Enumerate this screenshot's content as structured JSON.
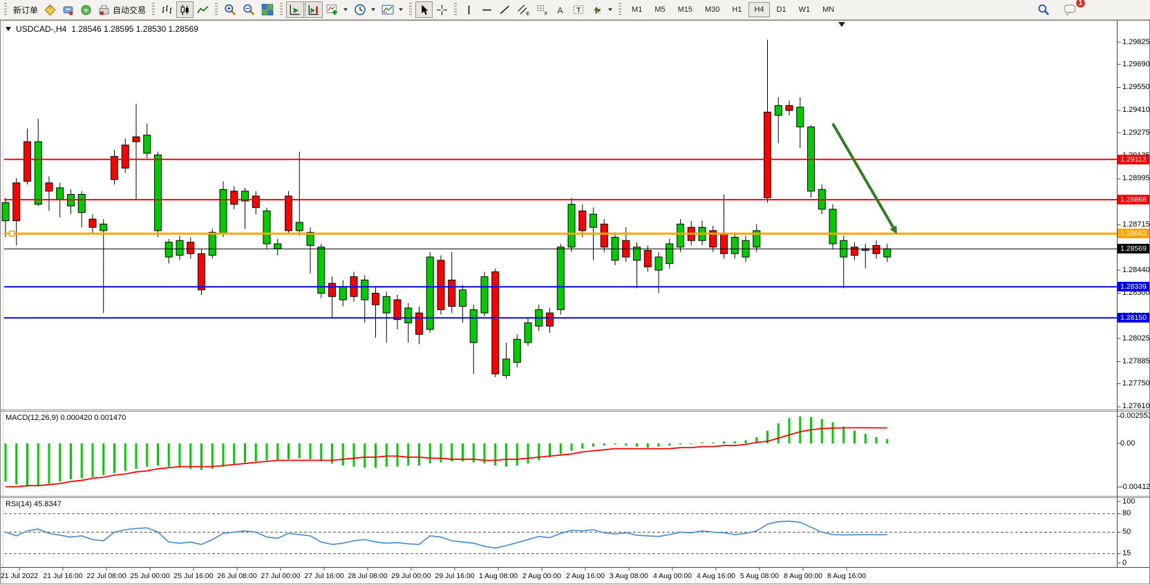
{
  "toolbar": {
    "new_order_label": "新订单",
    "auto_trading_label": "自动交易",
    "timeframes": [
      "M1",
      "M5",
      "M15",
      "M30",
      "H1",
      "H4",
      "D1",
      "W1",
      "MN"
    ],
    "active_timeframe": "H4",
    "notification_count": "1",
    "icon_buttons": [
      "new-order",
      "market-watch",
      "data-window",
      "alerts",
      "auto-trading",
      "bars-chart",
      "candlestick-chart",
      "line-chart",
      "zoom-in",
      "zoom-out",
      "tile-windows",
      "auto-scroll",
      "chart-shift",
      "indicators-list",
      "periods",
      "templates",
      "cursor",
      "crosshair",
      "vertical-line",
      "horizontal-line",
      "trendline",
      "equidistant-channel",
      "fibonacci",
      "text",
      "text-label",
      "arrows",
      "search",
      "chat"
    ],
    "active_icon_buttons": [
      "candlestick-chart",
      "auto-scroll",
      "chart-shift",
      "cursor"
    ]
  },
  "chart_data": [
    {
      "type": "candlestick",
      "title": "USDCAD-,H4",
      "ohlc_display": "1.28546 1.28595 1.28530 1.28569",
      "x_labels": [
        "21 Jul 2022",
        "21 Jul 16:00",
        "22 Jul 08:00",
        "25 Jul 00:00",
        "25 Jul 16:00",
        "26 Jul 08:00",
        "27 Jul 00:00",
        "27 Jul 16:00",
        "28 Jul 08:00",
        "29 Jul 00:00",
        "29 Jul 16:00",
        "1 Aug 08:00",
        "2 Aug 00:00",
        "2 Aug 16:00",
        "3 Aug 08:00",
        "4 Aug 00:00",
        "4 Aug 16:00",
        "5 Aug 08:00",
        "8 Aug 00:00",
        "8 Aug 16:00"
      ],
      "y_ticks": [
        "1.29825",
        "1.29690",
        "1.29550",
        "1.29410",
        "1.29275",
        "1.29135",
        "1.28995",
        "1.28855",
        "1.28715",
        "1.28575",
        "1.28440",
        "1.28300",
        "1.28160",
        "1.28025",
        "1.27885",
        "1.27750",
        "1.27610"
      ],
      "colors": {
        "up_body": "#00CC00",
        "down_body": "#FF0000",
        "outline": "#000000",
        "wick": "#000000"
      },
      "candle_format": [
        "body_top",
        "body_bottom",
        "high",
        "low",
        "color(g=green,r=red)"
      ],
      "candles": [
        [
          1.2885,
          1.2874,
          1.2888,
          1.2864,
          "g"
        ],
        [
          1.2897,
          1.2874,
          1.29,
          1.2859,
          "r"
        ],
        [
          1.2922,
          1.2898,
          1.293,
          1.2896,
          "r"
        ],
        [
          1.2922,
          1.2884,
          1.2936,
          1.2883,
          "g"
        ],
        [
          1.2897,
          1.2892,
          1.2901,
          1.288,
          "r"
        ],
        [
          1.2894,
          1.2887,
          1.2897,
          1.2876,
          "g"
        ],
        [
          1.289,
          1.2883,
          1.2893,
          1.2878,
          "g"
        ],
        [
          1.289,
          1.2879,
          1.2892,
          1.287,
          "g"
        ],
        [
          1.2875,
          1.287,
          1.2878,
          1.2866,
          "r"
        ],
        [
          1.2872,
          1.2868,
          1.2875,
          1.2818,
          "g"
        ],
        [
          1.2913,
          1.2899,
          1.2917,
          1.2896,
          "r"
        ],
        [
          1.292,
          1.2906,
          1.2924,
          1.2903,
          "r"
        ],
        [
          1.2925,
          1.2922,
          1.2945,
          1.2887,
          "r"
        ],
        [
          1.2926,
          1.2915,
          1.2933,
          1.2912,
          "g"
        ],
        [
          1.2914,
          1.2868,
          1.2916,
          1.2864,
          "g"
        ],
        [
          1.2861,
          1.2852,
          1.2863,
          1.2848,
          "g"
        ],
        [
          1.2862,
          1.2853,
          1.2865,
          1.285,
          "g"
        ],
        [
          1.2861,
          1.2854,
          1.2864,
          1.2851,
          "r"
        ],
        [
          1.2854,
          1.2832,
          1.2857,
          1.2829,
          "r"
        ],
        [
          1.2867,
          1.2853,
          1.2869,
          1.2851,
          "g"
        ],
        [
          1.2893,
          1.2866,
          1.2898,
          1.2864,
          "g"
        ],
        [
          1.2892,
          1.2884,
          1.2895,
          1.2881,
          "r"
        ],
        [
          1.2892,
          1.2886,
          1.2894,
          1.2869,
          "g"
        ],
        [
          1.2889,
          1.2882,
          1.2892,
          1.2878,
          "r"
        ],
        [
          1.288,
          1.286,
          1.2882,
          1.2857,
          "g"
        ],
        [
          1.286,
          1.2857,
          1.2863,
          1.2853,
          "g"
        ],
        [
          1.2889,
          1.2868,
          1.2892,
          1.2866,
          "r"
        ],
        [
          1.2873,
          1.2868,
          1.2916,
          1.2865,
          "g"
        ],
        [
          1.2867,
          1.2859,
          1.287,
          1.2842,
          "g"
        ],
        [
          1.2858,
          1.283,
          1.286,
          1.2827,
          "g"
        ],
        [
          1.2836,
          1.2828,
          1.284,
          1.2815,
          "r"
        ],
        [
          1.2834,
          1.2826,
          1.2838,
          1.2822,
          "g"
        ],
        [
          1.284,
          1.2828,
          1.2843,
          1.2825,
          "r"
        ],
        [
          1.2838,
          1.2826,
          1.2841,
          1.2812,
          "g"
        ],
        [
          1.283,
          1.2823,
          1.2834,
          1.2803,
          "r"
        ],
        [
          1.2828,
          1.2818,
          1.2831,
          1.28,
          "g"
        ],
        [
          1.2826,
          1.2814,
          1.2829,
          1.2808,
          "r"
        ],
        [
          1.2821,
          1.2812,
          1.2824,
          1.28,
          "g"
        ],
        [
          1.2818,
          1.2805,
          1.2822,
          1.2799,
          "r"
        ],
        [
          1.2852,
          1.2808,
          1.2855,
          1.2806,
          "g"
        ],
        [
          1.285,
          1.282,
          1.2853,
          1.2817,
          "r"
        ],
        [
          1.2838,
          1.2822,
          1.2855,
          1.2818,
          "r"
        ],
        [
          1.2832,
          1.2822,
          1.2835,
          1.2812,
          "g"
        ],
        [
          1.282,
          1.28,
          1.2823,
          1.2781,
          "g"
        ],
        [
          1.284,
          1.2818,
          1.2843,
          1.2816,
          "g"
        ],
        [
          1.2843,
          1.2781,
          1.2845,
          1.2779,
          "r"
        ],
        [
          1.279,
          1.278,
          1.28,
          1.2778,
          "g"
        ],
        [
          1.2802,
          1.2788,
          1.2805,
          1.2785,
          "g"
        ],
        [
          1.2812,
          1.28,
          1.2815,
          1.2798,
          "g"
        ],
        [
          1.282,
          1.281,
          1.2823,
          1.2807,
          "g"
        ],
        [
          1.2818,
          1.281,
          1.2821,
          1.2806,
          "r"
        ],
        [
          1.2858,
          1.282,
          1.286,
          1.2817,
          "g"
        ],
        [
          1.2884,
          1.2858,
          1.2888,
          1.2855,
          "g"
        ],
        [
          1.288,
          1.2868,
          1.2884,
          1.2864,
          "r"
        ],
        [
          1.2878,
          1.287,
          1.2882,
          1.285,
          "g"
        ],
        [
          1.2872,
          1.2858,
          1.2875,
          1.2855,
          "r"
        ],
        [
          1.2864,
          1.285,
          1.2867,
          1.2847,
          "g"
        ],
        [
          1.2862,
          1.2852,
          1.287,
          1.2849,
          "r"
        ],
        [
          1.2858,
          1.285,
          1.2861,
          1.2833,
          "g"
        ],
        [
          1.2856,
          1.2846,
          1.2859,
          1.2843,
          "r"
        ],
        [
          1.2852,
          1.2844,
          1.2855,
          1.283,
          "g"
        ],
        [
          1.286,
          1.2848,
          1.2863,
          1.2845,
          "g"
        ],
        [
          1.2872,
          1.2858,
          1.2875,
          1.2855,
          "g"
        ],
        [
          1.287,
          1.2862,
          1.2874,
          1.2859,
          "r"
        ],
        [
          1.287,
          1.2862,
          1.2874,
          1.2859,
          "g"
        ],
        [
          1.2868,
          1.2858,
          1.2871,
          1.2855,
          "r"
        ],
        [
          1.2866,
          1.2854,
          1.289,
          1.2851,
          "r"
        ],
        [
          1.2864,
          1.2854,
          1.2867,
          1.2851,
          "g"
        ],
        [
          1.2862,
          1.2852,
          1.2865,
          1.2849,
          "g"
        ],
        [
          1.2868,
          1.2858,
          1.2872,
          1.2855,
          "g"
        ],
        [
          1.294,
          1.2888,
          1.2984,
          1.2885,
          "r"
        ],
        [
          1.2944,
          1.2938,
          1.2949,
          1.2921,
          "g"
        ],
        [
          1.2944,
          1.2941,
          1.2947,
          1.2938,
          "r"
        ],
        [
          1.2943,
          1.2931,
          1.2949,
          1.2918,
          "g"
        ],
        [
          1.2931,
          1.2892,
          1.2932,
          1.2888,
          "g"
        ],
        [
          1.2893,
          1.2881,
          1.2896,
          1.2878,
          "g"
        ],
        [
          1.2881,
          1.286,
          1.2884,
          1.2857,
          "g"
        ],
        [
          1.2862,
          1.2852,
          1.2865,
          1.2833,
          "g"
        ],
        [
          1.2858,
          1.2853,
          1.2861,
          1.285,
          "r"
        ],
        [
          1.2857,
          1.2856,
          1.286,
          1.2845,
          "r"
        ],
        [
          1.2859,
          1.2854,
          1.2862,
          1.2851,
          "r"
        ],
        [
          1.2857,
          1.2852,
          1.286,
          1.2849,
          "g"
        ]
      ],
      "hlines": [
        {
          "price": 1.29113,
          "label": "1.29113",
          "color": "#FF0000",
          "width": 2
        },
        {
          "price": 1.28868,
          "label": "1.28868",
          "color": "#FF0000",
          "width": 2
        },
        {
          "price": 1.28662,
          "label": "1.28662",
          "color": "#FFA500",
          "width": 3,
          "handle": true
        },
        {
          "price": 1.28569,
          "label": "1.28569",
          "color": "#000000",
          "width": 1
        },
        {
          "price": 1.28339,
          "label": "1.28339",
          "color": "#0000FF",
          "width": 2
        },
        {
          "price": 1.2815,
          "label": "1.28150",
          "color": "#0000FF",
          "width": 2
        }
      ],
      "arrow": {
        "from_bar": 77.0,
        "from_price": 1.2933,
        "to_bar": 82.9,
        "to_price": 1.2866,
        "color": "#2E7D1E"
      }
    },
    {
      "type": "bar",
      "name": "MACD(12,26,9)",
      "label_display": "MACD(12,26,9) 0.000420 0.001470",
      "current_values": [
        0.00042,
        0.00147
      ],
      "y_ticks": [
        "0.002553",
        "0.00",
        "-0.004124"
      ],
      "histogram_color": "#00CC00",
      "signal_color": "#FF0000",
      "histogram": [
        -0.0036,
        -0.0039,
        -0.0041,
        -0.004,
        -0.0038,
        -0.0036,
        -0.0034,
        -0.0033,
        -0.0032,
        -0.003,
        -0.0028,
        -0.0026,
        -0.0024,
        -0.0022,
        -0.0021,
        -0.0022,
        -0.0023,
        -0.0024,
        -0.0025,
        -0.0024,
        -0.0022,
        -0.002,
        -0.0018,
        -0.0017,
        -0.0016,
        -0.0016,
        -0.0015,
        -0.0014,
        -0.0015,
        -0.0017,
        -0.0019,
        -0.0021,
        -0.0022,
        -0.0023,
        -0.0023,
        -0.0022,
        -0.0022,
        -0.0021,
        -0.0021,
        -0.0019,
        -0.0018,
        -0.0017,
        -0.0017,
        -0.0018,
        -0.0019,
        -0.0021,
        -0.0022,
        -0.0021,
        -0.0019,
        -0.0016,
        -0.0013,
        -0.001,
        -0.0007,
        -0.0005,
        -0.0003,
        -0.0002,
        -0.0001,
        -0.0002,
        -0.0003,
        -0.0004,
        -0.0003,
        -0.0002,
        -0.0001,
        0.0,
        0.0001,
        0.0001,
        0.0002,
        0.0002,
        0.0003,
        0.0006,
        0.0012,
        0.0019,
        0.0024,
        0.00255,
        0.0025,
        0.0023,
        0.002,
        0.0016,
        0.0012,
        0.0009,
        0.0006,
        0.00042
      ],
      "signal": [
        -0.0041,
        -0.0041,
        -0.004,
        -0.004,
        -0.0039,
        -0.0038,
        -0.0036,
        -0.0035,
        -0.0033,
        -0.0032,
        -0.003,
        -0.0029,
        -0.0027,
        -0.0026,
        -0.0024,
        -0.0023,
        -0.0022,
        -0.0022,
        -0.0022,
        -0.0022,
        -0.0021,
        -0.002,
        -0.0019,
        -0.0018,
        -0.0017,
        -0.0016,
        -0.0016,
        -0.0016,
        -0.0016,
        -0.0016,
        -0.0016,
        -0.0015,
        -0.0014,
        -0.0013,
        -0.0013,
        -0.0012,
        -0.0012,
        -0.0013,
        -0.0013,
        -0.0014,
        -0.0014,
        -0.0015,
        -0.0015,
        -0.0015,
        -0.0016,
        -0.0016,
        -0.0015,
        -0.0015,
        -0.0014,
        -0.0013,
        -0.0012,
        -0.0011,
        -0.001,
        -0.0008,
        -0.0007,
        -0.0006,
        -0.0005,
        -0.0005,
        -0.0005,
        -0.0005,
        -0.0005,
        -0.0005,
        -0.0004,
        -0.0004,
        -0.0003,
        -0.0003,
        -0.0002,
        -0.0002,
        -0.0001,
        0.0001,
        0.0002,
        0.0005,
        0.0008,
        0.0011,
        0.0013,
        0.0014,
        0.00145,
        0.00147,
        0.00148,
        0.00148,
        0.00147,
        0.00147
      ]
    },
    {
      "type": "line",
      "name": "RSI(14)",
      "label_display": "RSI(14) 45.8347",
      "current_value": 45.8347,
      "y_ticks": [
        "100",
        "80",
        "50",
        "15",
        "0"
      ],
      "levels": [
        80,
        50,
        15
      ],
      "line_color": "#4A8FD4",
      "values": [
        50,
        44,
        52,
        55,
        48,
        45,
        42,
        44,
        38,
        36,
        50,
        54,
        56,
        57,
        50,
        34,
        32,
        34,
        30,
        38,
        48,
        50,
        52,
        50,
        42,
        40,
        48,
        46,
        44,
        34,
        30,
        32,
        36,
        38,
        34,
        32,
        33,
        31,
        30,
        44,
        42,
        36,
        34,
        32,
        27,
        24,
        28,
        33,
        38,
        43,
        41,
        48,
        53,
        52,
        54,
        49,
        47,
        49,
        45,
        44,
        43,
        46,
        50,
        49,
        52,
        50,
        49,
        46,
        48,
        52,
        63,
        67,
        68,
        66,
        58,
        50,
        46,
        45.5,
        45.8,
        46,
        45.8,
        45.8
      ]
    }
  ]
}
